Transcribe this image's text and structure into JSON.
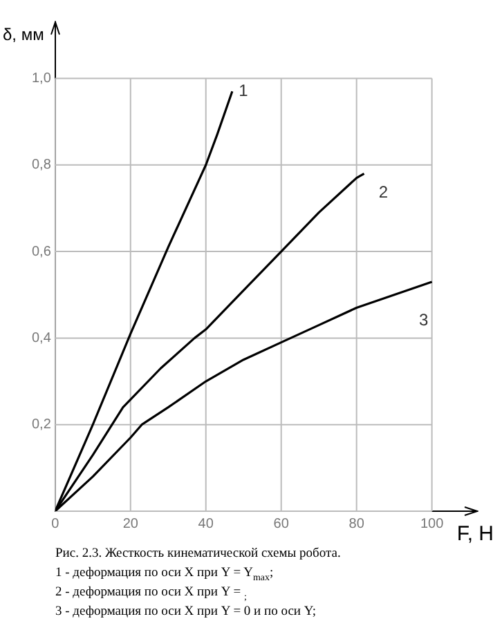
{
  "chart_data": {
    "type": "line",
    "xlabel": "F, H",
    "ylabel": "δ, мм",
    "xlim": [
      0,
      112
    ],
    "ylim": [
      0,
      1.13
    ],
    "xticks": [
      0,
      20,
      40,
      60,
      80,
      100
    ],
    "yticks": [
      {
        "value": 0,
        "label": null
      },
      {
        "value": 0.2,
        "label": "0,2"
      },
      {
        "value": 0.4,
        "label": "0,4"
      },
      {
        "value": 0.6,
        "label": "0,6"
      },
      {
        "value": 0.8,
        "label": "0,8"
      },
      {
        "value": 1,
        "label": "1,0"
      }
    ],
    "grid": true,
    "legend": false,
    "marker": "none",
    "line_style": "solid",
    "series": [
      {
        "name": "1",
        "color": "#000000",
        "x": [
          0,
          10,
          20,
          30,
          40,
          43,
          47
        ],
        "values": [
          0,
          0.2,
          0.41,
          0.61,
          0.8,
          0.87,
          0.97
        ]
      },
      {
        "name": "2",
        "color": "#000000",
        "x": [
          0,
          10,
          18,
          28,
          37,
          40,
          50,
          60,
          70,
          80,
          82
        ],
        "values": [
          0,
          0.13,
          0.24,
          0.33,
          0.4,
          0.42,
          0.51,
          0.6,
          0.69,
          0.77,
          0.78
        ]
      },
      {
        "name": "3",
        "color": "#000000",
        "x": [
          0,
          10,
          20,
          23,
          30,
          40,
          50,
          60,
          70,
          80,
          90,
          100
        ],
        "values": [
          0,
          0.08,
          0.17,
          0.2,
          0.24,
          0.3,
          0.35,
          0.39,
          0.43,
          0.47,
          0.5,
          0.53
        ]
      }
    ],
    "annotations": [
      "Рис. 2.3. Жесткость кинематической схемы робота.",
      "1 - деформация по оси X при Y = Y$_{max}$;",
      "2 - деформация по оси X при Y = $_{;}$",
      "3 - деформация по оси X при Y = 0 и по оси Y;"
    ]
  }
}
